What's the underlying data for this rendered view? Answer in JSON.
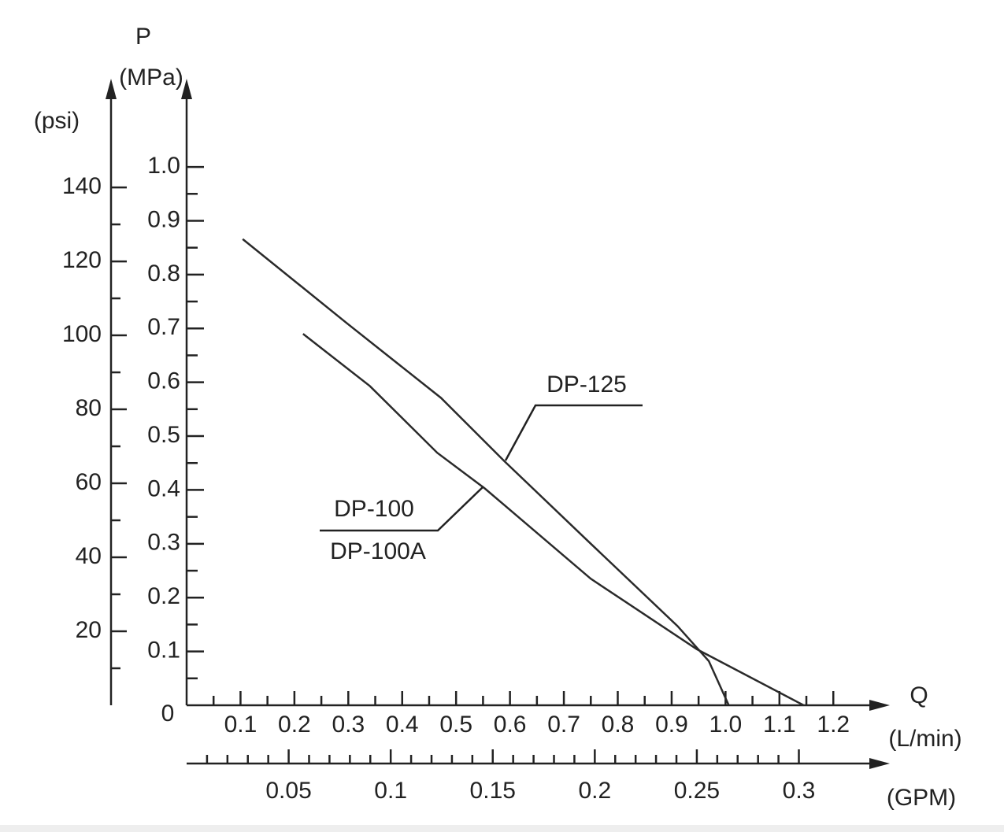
{
  "chart_data": {
    "type": "line",
    "y_title": "P",
    "y_unit": "(MPa)",
    "y2_unit": "(psi)",
    "x_title": "Q",
    "x_unit": "(L/min)",
    "x2_unit": "(GPM)",
    "xlim": [
      0,
      1.28
    ],
    "xticks": [
      0.1,
      0.2,
      0.3,
      0.4,
      0.5,
      0.6,
      0.7,
      0.8,
      0.9,
      {
        "value": 1,
        "label": "1.0"
      },
      1.1,
      1.2
    ],
    "x2lim": [
      0,
      0.338
    ],
    "x2ticks": [
      0.05,
      0.1,
      0.15,
      0.2,
      0.25,
      0.3
    ],
    "ylim": [
      0,
      1.12
    ],
    "yticks": [
      0,
      0.1,
      0.2,
      0.3,
      0.4,
      0.5,
      0.6,
      0.7,
      0.8,
      0.9,
      {
        "value": 1,
        "label": "1.0"
      }
    ],
    "y2lim": [
      0,
      163
    ],
    "y2ticks": [
      20,
      40,
      60,
      80,
      100,
      120,
      140
    ],
    "series": [
      {
        "name": "DP-125",
        "color": "#2a2a2a",
        "x": [
          0.104,
          0.297,
          0.472,
          0.589,
          0.75,
          0.911,
          0.969,
          1.006
        ],
        "values": [
          0.866,
          0.71,
          0.571,
          0.454,
          0.3,
          0.147,
          0.082,
          0
        ]
      },
      {
        "name": "DP-100",
        "alt_name": "DP-100A",
        "color": "#2a2a2a",
        "x": [
          0.216,
          0.34,
          0.465,
          0.553,
          0.75,
          0.947,
          1.145
        ],
        "values": [
          0.69,
          0.593,
          0.469,
          0.403,
          0.235,
          0.104,
          0
        ]
      }
    ]
  }
}
